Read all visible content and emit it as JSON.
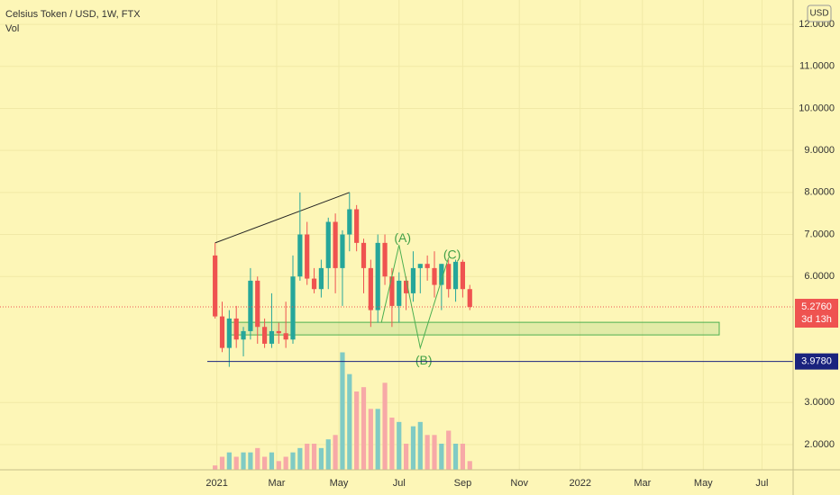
{
  "chart_data": {
    "type": "candlestick",
    "title": "Celsius Token / USD, 1W, FTX",
    "volume_label": "Vol",
    "currency": "USD",
    "open": [
      6.5,
      5.05,
      4.3,
      5.0,
      4.5,
      4.7,
      5.9,
      4.8,
      4.4,
      4.7,
      4.65,
      4.5,
      6.0,
      7.0,
      5.95,
      5.7,
      6.2,
      7.3,
      6.2,
      7.0,
      7.6,
      6.8,
      6.2,
      5.2,
      6.8,
      6.0,
      5.3,
      5.9,
      5.6,
      6.2,
      6.3,
      6.2,
      5.8,
      6.3,
      5.7,
      6.35,
      5.7
    ],
    "high": [
      6.8,
      5.4,
      5.2,
      5.3,
      4.8,
      6.2,
      6.0,
      5.0,
      5.6,
      4.9,
      5.4,
      6.5,
      8.0,
      7.3,
      6.2,
      6.4,
      7.4,
      7.5,
      7.1,
      8.0,
      7.7,
      6.9,
      6.4,
      7.0,
      7.0,
      6.2,
      6.1,
      6.0,
      6.6,
      6.3,
      6.5,
      6.6,
      6.3,
      6.4,
      6.4,
      6.4,
      5.8
    ],
    "low": [
      5.0,
      4.2,
      3.85,
      4.3,
      4.1,
      4.5,
      4.4,
      4.3,
      4.3,
      4.4,
      4.3,
      4.4,
      5.9,
      5.8,
      5.6,
      5.5,
      5.7,
      5.6,
      5.3,
      6.6,
      6.6,
      5.6,
      4.8,
      4.9,
      5.8,
      4.8,
      4.9,
      5.2,
      5.4,
      5.6,
      5.9,
      5.5,
      5.2,
      5.5,
      5.4,
      5.5,
      5.2
    ],
    "close": [
      5.05,
      4.3,
      5.0,
      4.5,
      4.7,
      5.9,
      4.8,
      4.4,
      4.7,
      4.65,
      4.5,
      6.0,
      7.0,
      5.95,
      5.7,
      6.2,
      7.3,
      6.2,
      7.0,
      7.6,
      6.8,
      6.2,
      5.2,
      6.8,
      6.0,
      5.3,
      5.9,
      5.6,
      6.2,
      6.3,
      6.2,
      5.8,
      6.3,
      5.7,
      6.35,
      5.7,
      5.276
    ],
    "volume": [
      1,
      3,
      4,
      3,
      4,
      4,
      5,
      3,
      4,
      2,
      3,
      4,
      5,
      6,
      6,
      5,
      7,
      8,
      27,
      22,
      18,
      19,
      14,
      14,
      20,
      12,
      11,
      6,
      10,
      11,
      8,
      8,
      6,
      9,
      6,
      6,
      2
    ],
    "up_color": "#26a69a",
    "down_color": "#ef5350",
    "up_volume_color": "#80cbc4",
    "down_volume_color": "#f7a9a7",
    "ylim": [
      1.4,
      12.58
    ],
    "volume_lim": [
      0,
      30
    ],
    "yticks": [
      {
        "value": 2,
        "label": "2.0000"
      },
      {
        "value": 3,
        "label": "3.0000"
      },
      {
        "value": 6,
        "label": "6.0000"
      },
      {
        "value": 7,
        "label": "7.0000"
      },
      {
        "value": 8,
        "label": "8.0000"
      },
      {
        "value": 9,
        "label": "9.0000"
      },
      {
        "value": 10,
        "label": "10.0000"
      },
      {
        "value": 11,
        "label": "11.0000"
      },
      {
        "value": 12,
        "label": "12.0000"
      }
    ],
    "xlim": [
      -30.4,
      81.7
    ],
    "xticks": [
      {
        "value": 0.25,
        "label": "2021"
      },
      {
        "value": 8.7,
        "label": "Mar"
      },
      {
        "value": 17.5,
        "label": "May"
      },
      {
        "value": 26,
        "label": "Jul"
      },
      {
        "value": 35,
        "label": "Sep"
      },
      {
        "value": 43,
        "label": "Nov"
      },
      {
        "value": 51.6,
        "label": "2022"
      },
      {
        "value": 60.4,
        "label": "Mar"
      },
      {
        "value": 69,
        "label": "May"
      },
      {
        "value": 77.3,
        "label": "Jul"
      }
    ],
    "grid": true,
    "last_price": {
      "value": 5.276,
      "label": "5.2760"
    },
    "countdown": "3d 13h",
    "horizontal_line": {
      "value": 3.978,
      "label": "3.9780",
      "color": "#1a237e"
    },
    "zone": {
      "low": 4.61,
      "high": 4.91
    },
    "annotations": [
      {
        "text": "(A)",
        "x": 26.5,
        "y": 6.9
      },
      {
        "text": "(B)",
        "x": 29.5,
        "y": 3.98
      },
      {
        "text": "(C)",
        "x": 33.5,
        "y": 6.5
      }
    ]
  }
}
